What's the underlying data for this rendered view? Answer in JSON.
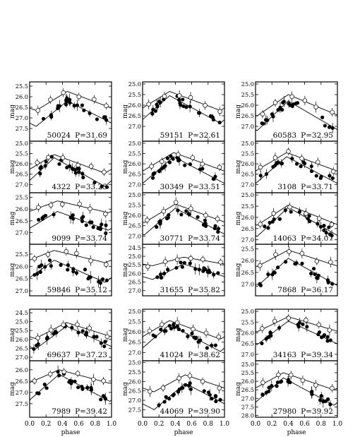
{
  "chart_data": {
    "type": "scatter",
    "grid": false,
    "xlabel": "phase",
    "ylabel": "mag",
    "xlim": [
      0.0,
      1.0
    ],
    "x_ticks": [
      "0.0",
      "0.2",
      "0.4",
      "0.6",
      "0.8",
      "1.0"
    ],
    "series_style": {
      "band1": "filled circles",
      "band2": "open circles with error bars"
    },
    "panels": [
      {
        "id": "50024",
        "period": "P=31.69",
        "ylim": [
          25.3,
          28.1
        ],
        "yticks": [
          "25.5",
          "26.0",
          "26.5",
          "27.0",
          "27.5"
        ],
        "peak": 0.46,
        "amp1": 1.2,
        "amp2": 0.9,
        "mean1": 26.8,
        "mean2": 26.2
      },
      {
        "id": "59151",
        "period": "P=32.61",
        "ylim": [
          24.9,
          27.7
        ],
        "yticks": [
          "25.0",
          "25.5",
          "26.0",
          "26.5",
          "27.0"
        ],
        "peak": 0.33,
        "amp1": 1.3,
        "amp2": 0.9,
        "mean1": 26.2,
        "mean2": 25.8
      },
      {
        "id": "60583",
        "period": "P=32.95",
        "ylim": [
          24.9,
          27.7
        ],
        "yticks": [
          "25.0",
          "25.5",
          "26.0",
          "26.5",
          "27.0"
        ],
        "peak": 0.4,
        "amp1": 1.4,
        "amp2": 1.0,
        "mean1": 26.5,
        "mean2": 26.0
      },
      {
        "id": "4322",
        "period": "P=33.25",
        "ylim": [
          24.9,
          27.4
        ],
        "yticks": [
          "25.0",
          "25.5",
          "26.0",
          "26.5",
          "27.0"
        ],
        "peak": 0.3,
        "amp1": 1.4,
        "amp2": 0.9,
        "mean1": 26.4,
        "mean2": 26.0
      },
      {
        "id": "30349",
        "period": "P=33.51",
        "ylim": [
          24.9,
          27.4
        ],
        "yticks": [
          "25.0",
          "25.5",
          "26.0",
          "26.5",
          "27.0"
        ],
        "peak": 0.38,
        "amp1": 1.3,
        "amp2": 0.9,
        "mean1": 26.3,
        "mean2": 25.9
      },
      {
        "id": "3108",
        "period": "P=33.71",
        "ylim": [
          24.9,
          27.4
        ],
        "yticks": [
          "25.0",
          "25.5",
          "26.0",
          "26.5",
          "27.0"
        ],
        "peak": 0.38,
        "amp1": 1.3,
        "amp2": 0.9,
        "mean1": 26.3,
        "mean2": 25.9
      },
      {
        "id": "9099",
        "period": "P=33.74",
        "ylim": [
          25.3,
          27.5
        ],
        "yticks": [
          "25.5",
          "26.0",
          "26.5",
          "27.0"
        ],
        "peak": 0.34,
        "amp1": 0.8,
        "amp2": 0.5,
        "mean1": 26.5,
        "mean2": 25.9
      },
      {
        "id": "30771",
        "period": "P=33.74",
        "ylim": [
          24.9,
          27.4
        ],
        "yticks": [
          "25.0",
          "25.5",
          "26.0",
          "26.5",
          "27.0"
        ],
        "peak": 0.4,
        "amp1": 1.3,
        "amp2": 0.9,
        "mean1": 26.3,
        "mean2": 25.9
      },
      {
        "id": "14063",
        "period": "P=34.07",
        "ylim": [
          24.9,
          27.2
        ],
        "yticks": [
          "25.0",
          "25.5",
          "26.0",
          "26.5",
          "27.0"
        ],
        "peak": 0.4,
        "amp1": 1.3,
        "amp2": 0.9,
        "mean1": 26.2,
        "mean2": 25.9
      },
      {
        "id": "59846",
        "period": "P=35.12",
        "ylim": [
          25.1,
          27.2
        ],
        "yticks": [
          "25.5",
          "26.0",
          "26.5",
          "27.0"
        ],
        "peak": 0.3,
        "amp1": 0.9,
        "amp2": 0.5,
        "mean1": 26.2,
        "mean2": 25.6
      },
      {
        "id": "31655",
        "period": "P=35.82",
        "ylim": [
          24.3,
          27.3
        ],
        "yticks": [
          "24.5",
          "25.0",
          "25.5",
          "26.0",
          "26.5",
          "27.0"
        ],
        "peak": 0.5,
        "amp1": 0.9,
        "amp2": 0.5,
        "mean1": 25.9,
        "mean2": 25.3
      },
      {
        "id": "7868",
        "period": "P=36.17",
        "ylim": [
          25.3,
          27.5
        ],
        "yticks": [
          "25.5",
          "26.0",
          "26.5",
          "27.0"
        ],
        "peak": 0.4,
        "amp1": 1.2,
        "amp2": 0.7,
        "mean1": 26.5,
        "mean2": 25.9
      },
      {
        "id": "69637",
        "period": "P=37.23",
        "ylim": [
          24.3,
          27.2
        ],
        "yticks": [
          "24.5",
          "25.0",
          "25.5",
          "26.0",
          "26.5",
          "27.0"
        ],
        "peak": 0.45,
        "amp1": 1.3,
        "amp2": 0.9,
        "mean1": 25.9,
        "mean2": 25.5
      },
      {
        "id": "41024",
        "period": "P=38.62",
        "ylim": [
          24.9,
          27.4
        ],
        "yticks": [
          "25.0",
          "25.5",
          "26.0",
          "26.5",
          "27.0"
        ],
        "peak": 0.33,
        "amp1": 1.3,
        "amp2": 0.9,
        "mean1": 26.3,
        "mean2": 25.9
      },
      {
        "id": "34163",
        "period": "P=39.34",
        "ylim": [
          24.9,
          27.3
        ],
        "yticks": [
          "25.0",
          "25.5",
          "26.0",
          "26.5",
          "27.0"
        ],
        "peak": 0.4,
        "amp1": 1.1,
        "amp2": 0.7,
        "mean1": 26.0,
        "mean2": 25.6
      },
      {
        "id": "7989",
        "period": "P=39.42",
        "ylim": [
          25.6,
          28.1
        ],
        "yticks": [
          "26.0",
          "26.5",
          "27.0",
          "27.5"
        ],
        "peak": 0.36,
        "amp1": 1.2,
        "amp2": 0.6,
        "mean1": 26.8,
        "mean2": 26.3
      },
      {
        "id": "44069",
        "period": "P=39.90",
        "ylim": [
          24.9,
          27.9
        ],
        "yticks": [
          "25.0",
          "25.5",
          "26.0",
          "26.5",
          "27.0",
          "27.5"
        ],
        "peak": 0.52,
        "amp1": 1.4,
        "amp2": 0.9,
        "mean1": 26.8,
        "mean2": 26.1
      },
      {
        "id": "27980",
        "period": "P=39.92",
        "ylim": [
          24.8,
          28.1
        ],
        "yticks": [
          "25.0",
          "25.5",
          "26.0",
          "26.5",
          "27.0",
          "27.5",
          "28.0"
        ],
        "peak": 0.34,
        "amp1": 1.6,
        "amp2": 1.0,
        "mean1": 26.6,
        "mean2": 26.0
      }
    ]
  }
}
